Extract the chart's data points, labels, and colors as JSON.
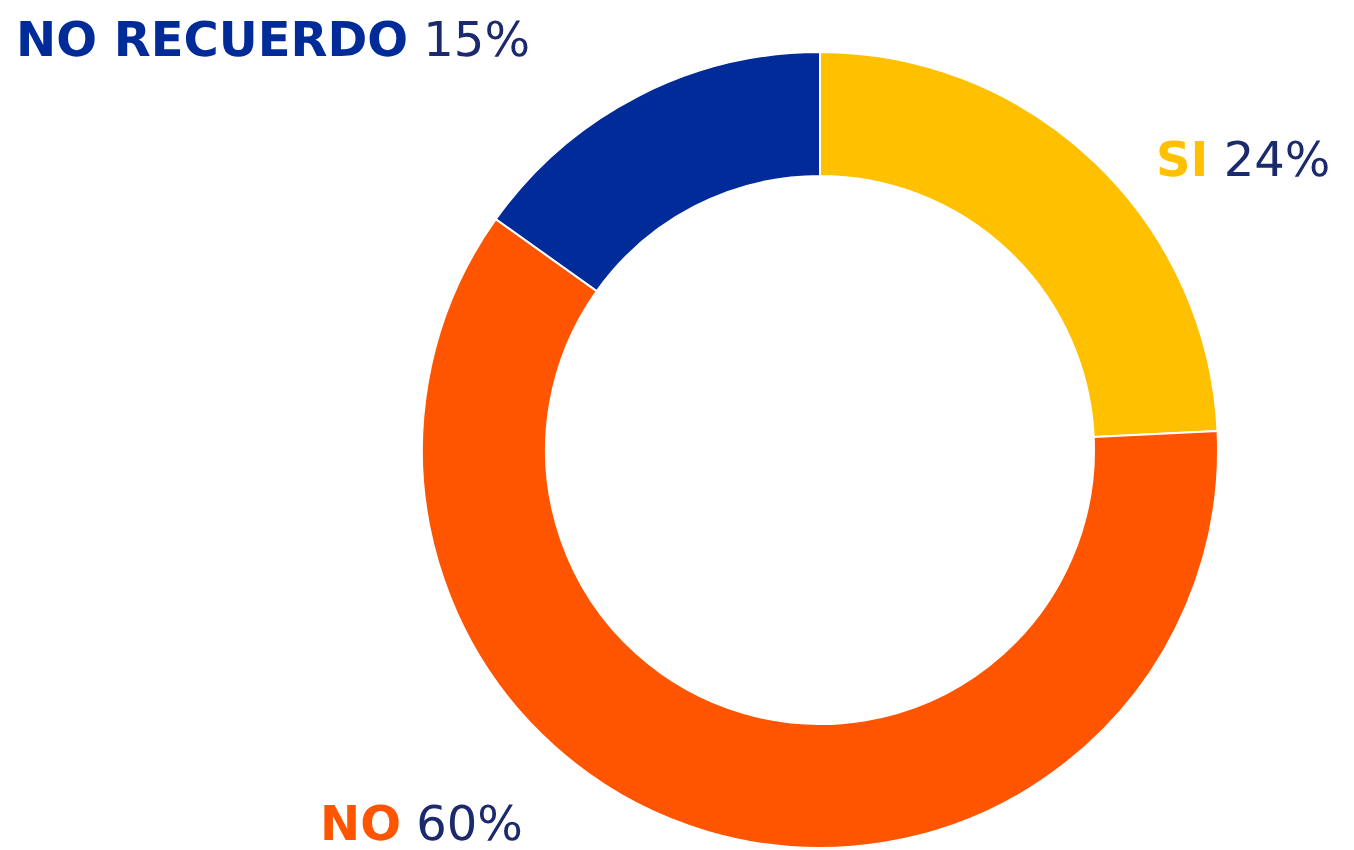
{
  "chart_data": {
    "type": "donut",
    "categories": [
      "SI",
      "NO",
      "NO RECUERDO"
    ],
    "values": [
      24,
      60,
      15
    ],
    "colors": [
      "#ffc000",
      "#ff5500",
      "#002b99"
    ],
    "value_labels": [
      "24%",
      "60%",
      "15%"
    ]
  }
}
